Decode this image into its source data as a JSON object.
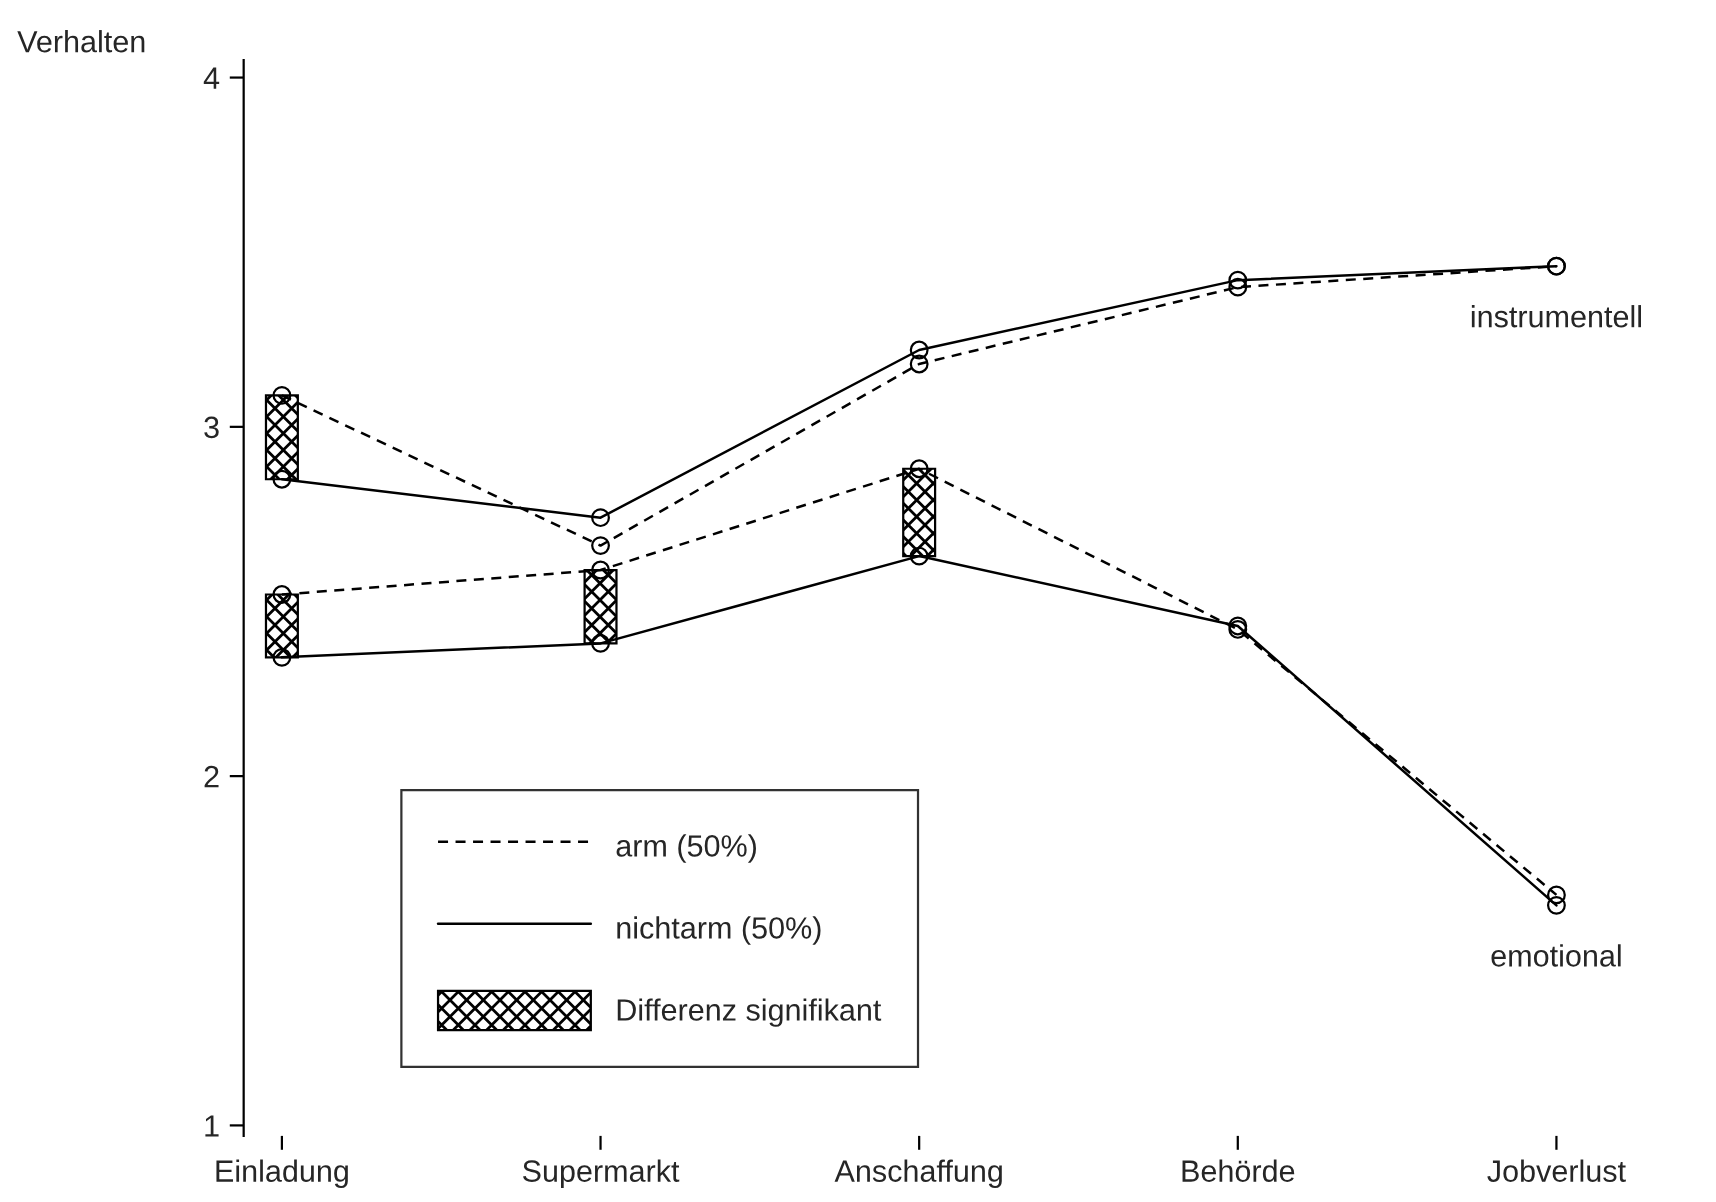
{
  "chart_data": {
    "type": "line",
    "ylabel": "Verhalten",
    "categories": [
      "Einladung",
      "Supermarkt",
      "Anschaffung",
      "Behörde",
      "Jobverlust"
    ],
    "ylim": [
      0.97,
      4.05
    ],
    "yticks": [
      1,
      2,
      3,
      4
    ],
    "marker": "circle",
    "legend": "bottom left",
    "grid": false,
    "series": [
      {
        "name": "arm (50%)",
        "color": "#000000",
        "line_style": "dashed",
        "values": [
          3.09,
          2.66,
          3.18,
          3.4,
          3.46
        ]
      },
      {
        "name": "nichtarm (50%)",
        "color": "#000000",
        "line_style": "solid",
        "values": [
          2.85,
          2.74,
          3.22,
          3.42,
          3.46
        ]
      },
      {
        "color": "#000000",
        "line_style": "dashed",
        "values": [
          2.52,
          2.59,
          2.88,
          2.42,
          1.66
        ]
      },
      {
        "color": "#000000",
        "line_style": "solid",
        "values": [
          2.34,
          2.38,
          2.63,
          2.43,
          1.63
        ]
      },
      {
        "type": "bar",
        "name": "Differenz signifikant",
        "color": "#000000",
        "base": [
          2.34,
          2.38,
          2.63,
          null,
          null
        ],
        "values": [
          0.18,
          0.21,
          0.25,
          null,
          null
        ]
      },
      {
        "type": "bar",
        "color": "#000000",
        "base": [
          2.85,
          null,
          null,
          null,
          null
        ],
        "values": [
          0.24,
          null,
          null,
          null,
          null
        ]
      }
    ],
    "annotations": [
      "instrumentell",
      "emotional"
    ]
  }
}
